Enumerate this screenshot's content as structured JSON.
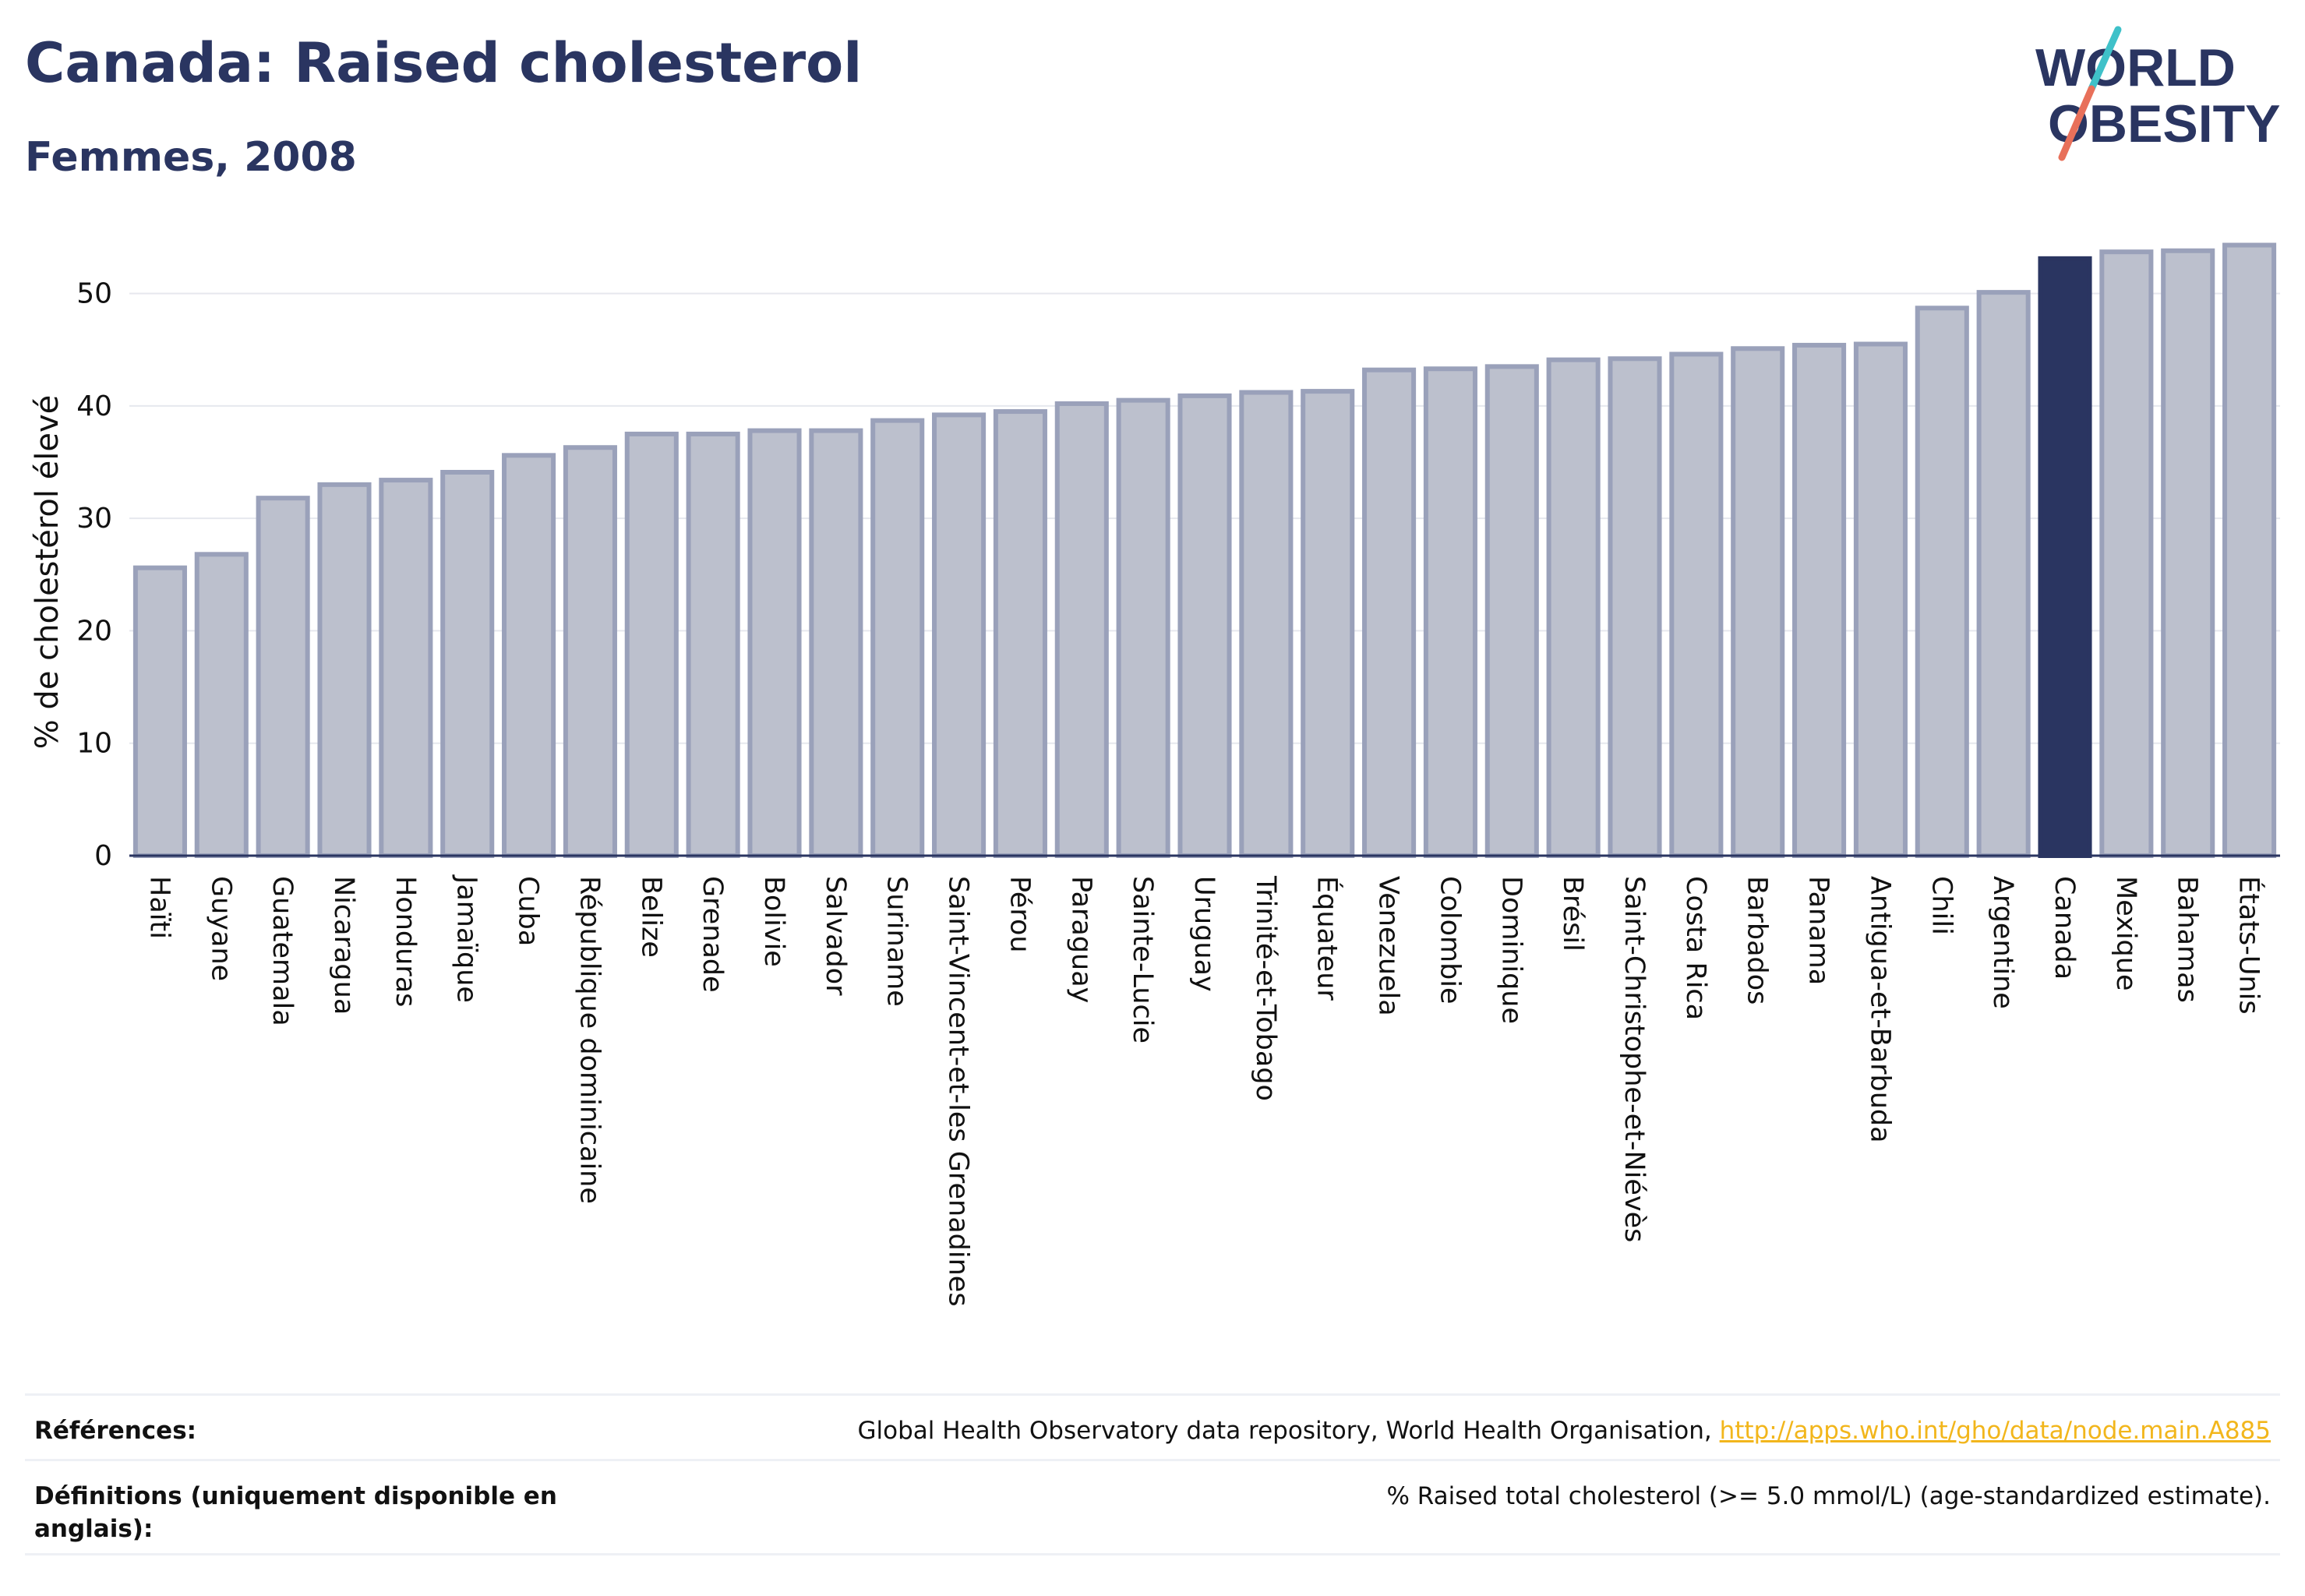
{
  "header": {
    "title": "Canada: Raised cholesterol",
    "subtitle": "Femmes, 2008"
  },
  "logo": {
    "line1": "WORLD",
    "line2": "OBESITY",
    "accent_colors": [
      "#3fc1c9",
      "#e8705a"
    ]
  },
  "colors": {
    "bar_fill": "#bcc0cd",
    "bar_stroke": "#9aa1ba",
    "highlight": "#2a3561",
    "grid": "#e6e8ee",
    "axis": "#2a3561"
  },
  "chart_data": {
    "type": "bar",
    "ylabel": "% de cholestérol élevé",
    "ylim": [
      0,
      56
    ],
    "yticks": [
      0,
      10,
      20,
      30,
      40,
      50
    ],
    "grid": true,
    "highlight_category": "Canada",
    "categories": [
      "Haïti",
      "Guyane",
      "Guatemala",
      "Nicaragua",
      "Honduras",
      "Jamaïque",
      "Cuba",
      "République dominicaine",
      "Belize",
      "Grenade",
      "Bolivie",
      "Salvador",
      "Suriname",
      "Saint-Vincent-et-les Grenadines",
      "Pérou",
      "Paraguay",
      "Sainte-Lucie",
      "Uruguay",
      "Trinité-et-Tobago",
      "Équateur",
      "Venezuela",
      "Colombie",
      "Dominique",
      "Brésil",
      "Saint-Christophe-et-Niévès",
      "Costa Rica",
      "Barbados",
      "Panama",
      "Antigua-et-Barbuda",
      "Chili",
      "Argentine",
      "Canada",
      "Mexique",
      "Bahamas",
      "États-Unis"
    ],
    "values": [
      25.6,
      26.8,
      31.8,
      33.0,
      33.4,
      34.1,
      35.6,
      36.3,
      37.5,
      37.5,
      37.8,
      37.8,
      38.7,
      39.2,
      39.5,
      40.2,
      40.5,
      40.9,
      41.2,
      41.3,
      43.2,
      43.3,
      43.5,
      44.1,
      44.2,
      44.6,
      45.1,
      45.4,
      45.5,
      48.7,
      50.1,
      53.1,
      53.7,
      53.8,
      54.3
    ]
  },
  "references": {
    "sources_label": "Références:",
    "sources_text": "Global Health Observatory data repository, World Health Organisation, ",
    "sources_link": "http://apps.who.int/gho/data/node.main.A885",
    "definitions_label": "Définitions (uniquement disponible en anglais):",
    "definitions_text": "% Raised total cholesterol (>= 5.0 mmol/L) (age-standardized estimate)."
  }
}
